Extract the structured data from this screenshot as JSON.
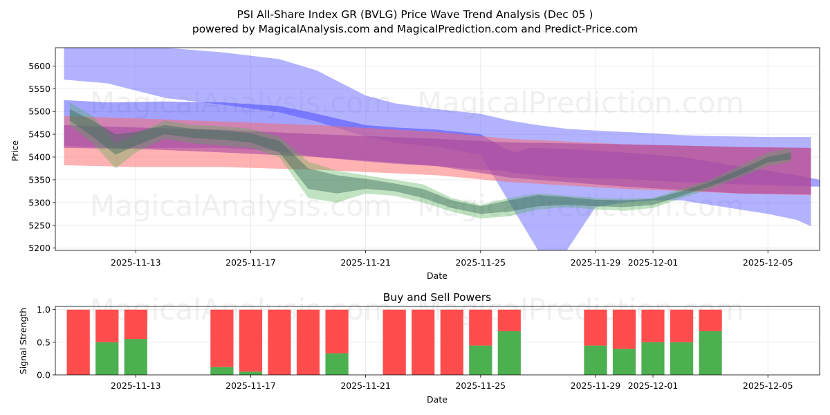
{
  "title_line1": "PSI All-Share Index GR (BVLG) Price Wave Trend Analysis (Dec 05 )",
  "title_line2": "powered by MagicalAnalysis.com and MagicalPrediction.com and Predict-Price.com",
  "watermarks": [
    "MagicalAnalysis.com",
    "MagicalPrediction.com"
  ],
  "colors": {
    "red_band": "#ff9999",
    "blue_band": "#9999ff",
    "green_band": "#4caf50",
    "purple_band": "#a050c0",
    "buy": "#4caf50",
    "sell": "#ff4d4d"
  },
  "chart_data": [
    {
      "type": "area",
      "title": "",
      "xlabel": "Date",
      "ylabel": "Price",
      "ylim": [
        5195,
        5640
      ],
      "yticks": [
        5200,
        5250,
        5300,
        5350,
        5400,
        5450,
        5500,
        5550,
        5600
      ],
      "xticks": [
        "2025-11-13",
        "2025-11-17",
        "2025-11-21",
        "2025-11-25",
        "2025-11-29",
        "2025-12-01",
        "2025-12-05"
      ],
      "x_note": "x values are days since 2025-11-10",
      "xlim": [
        0.2,
        26.8
      ],
      "series": [
        {
          "name": "blue-wide-band",
          "x": [
            0.5,
            2,
            4,
            6,
            8,
            9.3,
            11,
            12,
            13.5,
            15,
            16,
            17,
            18,
            19,
            20,
            21,
            22,
            23,
            24,
            25,
            26,
            26.5
          ],
          "upper": [
            5640,
            5640,
            5640,
            5630,
            5615,
            5590,
            5535,
            5518,
            5505,
            5495,
            5480,
            5470,
            5462,
            5458,
            5455,
            5452,
            5448,
            5446,
            5445,
            5444,
            5444,
            5444
          ],
          "lower": [
            5570,
            5562,
            5530,
            5515,
            5498,
            5478,
            5445,
            5432,
            5422,
            5405,
            5300,
            5150,
            5150,
            5290,
            5300,
            5305,
            5305,
            5295,
            5285,
            5275,
            5262,
            5248
          ]
        },
        {
          "name": "blue-dark-band",
          "x": [
            0.5,
            2,
            4,
            6,
            8,
            9.3,
            11,
            12,
            13.5,
            15,
            15.8,
            16.2,
            16.7,
            18,
            20,
            22,
            24,
            26,
            26.8
          ],
          "upper": [
            5525,
            5520,
            5522,
            5520,
            5512,
            5495,
            5470,
            5465,
            5460,
            5450,
            5420,
            5410,
            5420,
            5418,
            5410,
            5400,
            5380,
            5360,
            5350
          ],
          "lower": [
            5425,
            5420,
            5420,
            5420,
            5413,
            5400,
            5390,
            5385,
            5380,
            5372,
            5370,
            5365,
            5362,
            5355,
            5352,
            5345,
            5340,
            5336,
            5335
          ]
        },
        {
          "name": "red-band",
          "x": [
            0.5,
            3,
            6,
            9.3,
            13.5,
            16,
            20,
            24,
            26.5
          ],
          "upper": [
            5490,
            5485,
            5478,
            5470,
            5455,
            5440,
            5428,
            5422,
            5420
          ],
          "lower": [
            5382,
            5378,
            5378,
            5372,
            5360,
            5345,
            5330,
            5320,
            5316
          ]
        },
        {
          "name": "purple-band",
          "x": [
            0.5,
            3,
            6,
            9.3,
            13.5,
            16,
            20,
            24,
            26.5
          ],
          "upper": [
            5470,
            5465,
            5460,
            5450,
            5440,
            5432,
            5428,
            5422,
            5420
          ],
          "lower": [
            5420,
            5418,
            5410,
            5400,
            5380,
            5355,
            5335,
            5320,
            5318
          ]
        },
        {
          "name": "green-band",
          "x": [
            0.7,
            1.5,
            2.3,
            3,
            4,
            5,
            6,
            7,
            8,
            9,
            10,
            11,
            12,
            13,
            14,
            15,
            16,
            17,
            18,
            19,
            20,
            21,
            22,
            23,
            24,
            25,
            25.8
          ],
          "upper": [
            5520,
            5490,
            5430,
            5450,
            5480,
            5470,
            5468,
            5462,
            5445,
            5390,
            5370,
            5360,
            5350,
            5340,
            5310,
            5295,
            5310,
            5320,
            5315,
            5310,
            5308,
            5310,
            5330,
            5350,
            5380,
            5410,
            5420
          ],
          "lower": [
            5470,
            5430,
            5375,
            5410,
            5440,
            5430,
            5425,
            5420,
            5400,
            5310,
            5300,
            5320,
            5315,
            5300,
            5280,
            5265,
            5270,
            5285,
            5290,
            5285,
            5282,
            5288,
            5310,
            5330,
            5355,
            5380,
            5390
          ]
        },
        {
          "name": "dark-overlay-band",
          "x": [
            0.7,
            1.5,
            2.3,
            3,
            4,
            5,
            6,
            7,
            8,
            9,
            10,
            11,
            12,
            13,
            14,
            15,
            16,
            17,
            18,
            19,
            20,
            21,
            22,
            23,
            24,
            25,
            25.8
          ],
          "upper": [
            5505,
            5480,
            5450,
            5455,
            5470,
            5462,
            5458,
            5452,
            5435,
            5375,
            5360,
            5352,
            5342,
            5330,
            5305,
            5292,
            5305,
            5316,
            5312,
            5306,
            5305,
            5308,
            5325,
            5345,
            5372,
            5400,
            5410
          ],
          "lower": [
            5480,
            5445,
            5405,
            5425,
            5450,
            5442,
            5438,
            5432,
            5410,
            5330,
            5320,
            5330,
            5325,
            5310,
            5288,
            5275,
            5280,
            5292,
            5295,
            5292,
            5290,
            5295,
            5315,
            5336,
            5360,
            5388,
            5395
          ]
        }
      ]
    },
    {
      "type": "bar",
      "title": "Buy and Sell Powers",
      "xlabel": "Date",
      "ylabel": "Signal Strength",
      "ylim": [
        0,
        1.05
      ],
      "yticks": [
        0.0,
        0.5,
        1.0
      ],
      "ytick_labels": [
        "0.0",
        "0.5",
        "1.0"
      ],
      "xticks": [
        "2025-11-13",
        "2025-11-17",
        "2025-11-21",
        "2025-11-25",
        "2025-11-29",
        "2025-12-01",
        "2025-12-05"
      ],
      "x_note": "x values are days since 2025-11-10",
      "xlim": [
        0.2,
        26.8
      ],
      "x": [
        1,
        2,
        3,
        6,
        7,
        8,
        9,
        10,
        12,
        13,
        14,
        15,
        16,
        19,
        20,
        21,
        22,
        23
      ],
      "series": [
        {
          "name": "Buy",
          "values": [
            0.0,
            0.5,
            0.55,
            0.12,
            0.05,
            0.0,
            0.0,
            0.33,
            0.0,
            0.0,
            0.0,
            0.45,
            0.67,
            0.45,
            0.4,
            0.5,
            0.5,
            0.67
          ]
        },
        {
          "name": "Sell",
          "values": [
            1.0,
            0.5,
            0.45,
            0.88,
            0.95,
            1.0,
            1.0,
            0.67,
            1.0,
            1.0,
            1.0,
            0.55,
            0.33,
            0.55,
            0.6,
            0.5,
            0.5,
            0.33
          ]
        }
      ]
    }
  ]
}
